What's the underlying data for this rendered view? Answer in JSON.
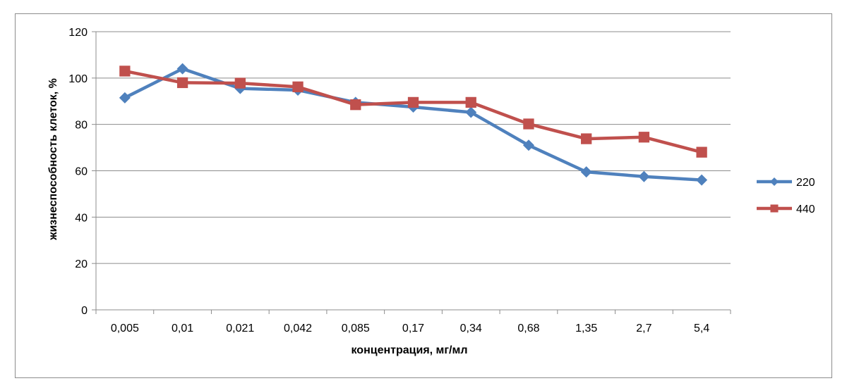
{
  "chart_data": {
    "type": "line",
    "categories": [
      "0,005",
      "0,01",
      "0,021",
      "0,042",
      "0,085",
      "0,17",
      "0,34",
      "0,68",
      "1,35",
      "2,7",
      "5,4"
    ],
    "series": [
      {
        "name": "220",
        "color": "#4f81bd",
        "marker": "diamond",
        "values": [
          91.5,
          104,
          95.5,
          94.8,
          89.5,
          87.5,
          85.2,
          71,
          59.5,
          57.5,
          56
        ]
      },
      {
        "name": "440",
        "color": "#c0504d",
        "marker": "square",
        "values": [
          103,
          98,
          97.8,
          96.2,
          88.5,
          89.5,
          89.5,
          80.2,
          73.8,
          74.5,
          68
        ]
      }
    ],
    "xlabel": "концентрация, мг/мл",
    "ylabel": "жизнеспособность клеток, %",
    "ylim": [
      0,
      120
    ],
    "yticks": [
      0,
      20,
      40,
      60,
      80,
      100,
      120
    ],
    "grid": true,
    "legend_position": "right"
  }
}
